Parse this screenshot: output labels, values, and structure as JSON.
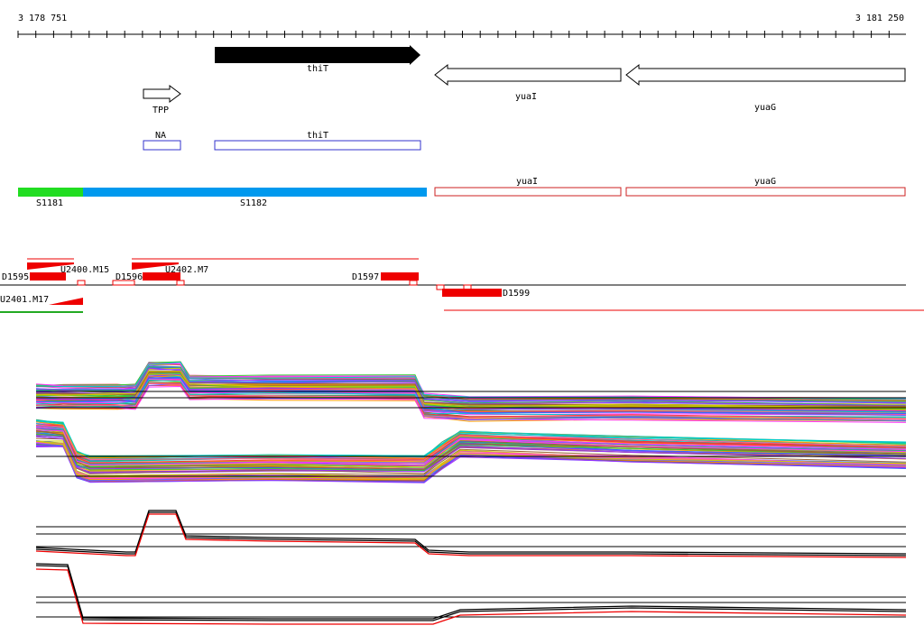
{
  "ruler": {
    "start_label": "3 178 751",
    "end_label": "3 181 250"
  },
  "genes": {
    "thiT": "thiT",
    "yuaI": "yuaI",
    "yuaG": "yuaG",
    "tpp": "TPP"
  },
  "annotation_boxes": {
    "na": "NA",
    "thiT": "thiT",
    "yuaI": "yuaI",
    "yuaG": "yuaG"
  },
  "segments": {
    "s1181": "S1181",
    "s1182": "S1182"
  },
  "features": {
    "u2400": "U2400.M15",
    "u2402": "U2402.M7",
    "u2401": "U2401.M17",
    "d1595": "D1595",
    "d1596": "D1596",
    "d1597": "D1597",
    "d1599": "D1599"
  },
  "colors": {
    "segment_green": "#22dd22",
    "segment_blue": "#0099ee",
    "feature_red": "#ee0000",
    "annotation_blue": "#3333cc",
    "annotation_red": "#cc2222"
  }
}
